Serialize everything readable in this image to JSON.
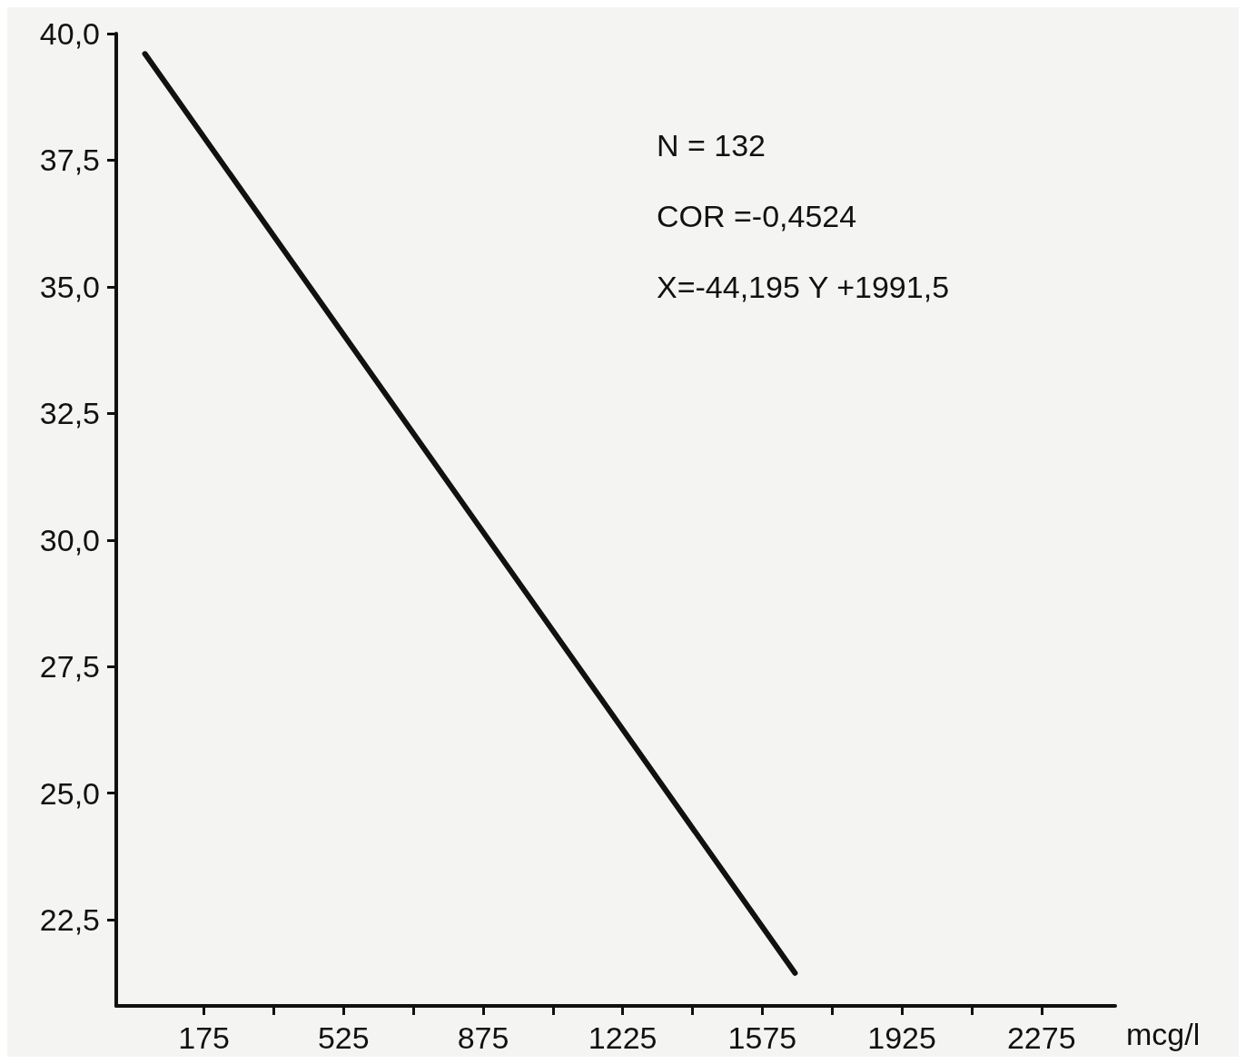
{
  "chart_data": {
    "type": "line",
    "xlabel": "mcg/l",
    "annotations": [
      "N = 132",
      "COR =-0,4524",
      "X=-44,195 Y +1991,5"
    ],
    "series": [
      {
        "x": [
          27,
          1657
        ],
        "values": [
          39.6,
          21.45
        ],
        "color": "#111111"
      }
    ],
    "xlim": [
      -45,
      2460
    ],
    "xticks": [
      175,
      {
        "value": 350,
        "label": null
      },
      525,
      {
        "value": 700,
        "label": null
      },
      875,
      {
        "value": 1050,
        "label": null
      },
      1225,
      {
        "value": 1400,
        "label": null
      },
      1575,
      {
        "value": 1750,
        "label": null
      },
      1925,
      {
        "value": 2100,
        "label": null
      },
      2275
    ],
    "ylim": [
      20.8,
      40
    ],
    "yticks": [
      {
        "value": 22.5,
        "label": "22,5"
      },
      {
        "value": 25,
        "label": "25,0"
      },
      {
        "value": 27.5,
        "label": "27,5"
      },
      {
        "value": 30,
        "label": "30,0"
      },
      {
        "value": 32.5,
        "label": "32,5"
      },
      {
        "value": 35,
        "label": "35,0"
      },
      {
        "value": 37.5,
        "label": "37,5"
      },
      {
        "value": 40,
        "label": "40,0"
      }
    ],
    "grid": false,
    "marker": "none",
    "line_style": "solid"
  }
}
